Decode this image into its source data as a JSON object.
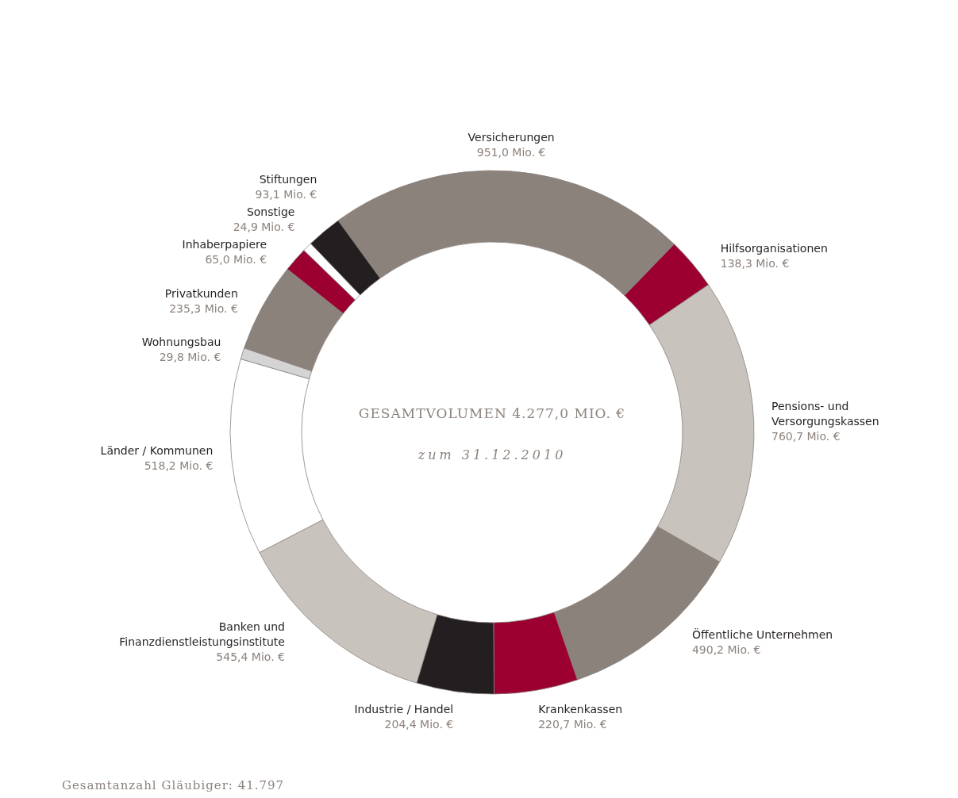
{
  "chart_data": {
    "type": "donut",
    "title": "GESAMTVOLUMEN 4.277,0 MIO. €",
    "subtitle": "zum 31.12.2010",
    "categories": [
      "Versicherungen",
      "Hilfsorganisationen",
      "Pensions- und Versorgungskassen",
      "Öffentliche Unternehmen",
      "Krankenkassen",
      "Industrie / Handel",
      "Banken und Finanzdienstleistungsinstitute",
      "Länder / Kommunen",
      "Wohnungsbau",
      "Privatkunden",
      "Inhaberpapiere",
      "Sonstige",
      "Stiftungen"
    ],
    "values": [
      951.0,
      138.3,
      760.7,
      490.2,
      220.7,
      204.4,
      545.4,
      518.2,
      29.8,
      235.3,
      65.0,
      24.9,
      93.1
    ],
    "value_labels": [
      "951,0 Mio. €",
      "138,3 Mio. €",
      "760,7 Mio. €",
      "490,2 Mio. €",
      "220,7 Mio. €",
      "204,4 Mio. €",
      "545,4 Mio. €",
      "518,2 Mio. €",
      "29,8 Mio. €",
      "235,3 Mio. €",
      "65,0 Mio. €",
      "24,9 Mio. €",
      "93,1 Mio. €"
    ],
    "colors": [
      "#8c827c",
      "#9b0030",
      "#c9c3be",
      "#8c827c",
      "#9b0030",
      "#231f20",
      "#c9c3be",
      "#ffffff",
      "#d4d4d4",
      "#8c827c",
      "#9b0030",
      "#ffffff",
      "#231f20"
    ],
    "annotations": [
      "Gesamtanzahl Gläubiger: 41.797"
    ]
  }
}
